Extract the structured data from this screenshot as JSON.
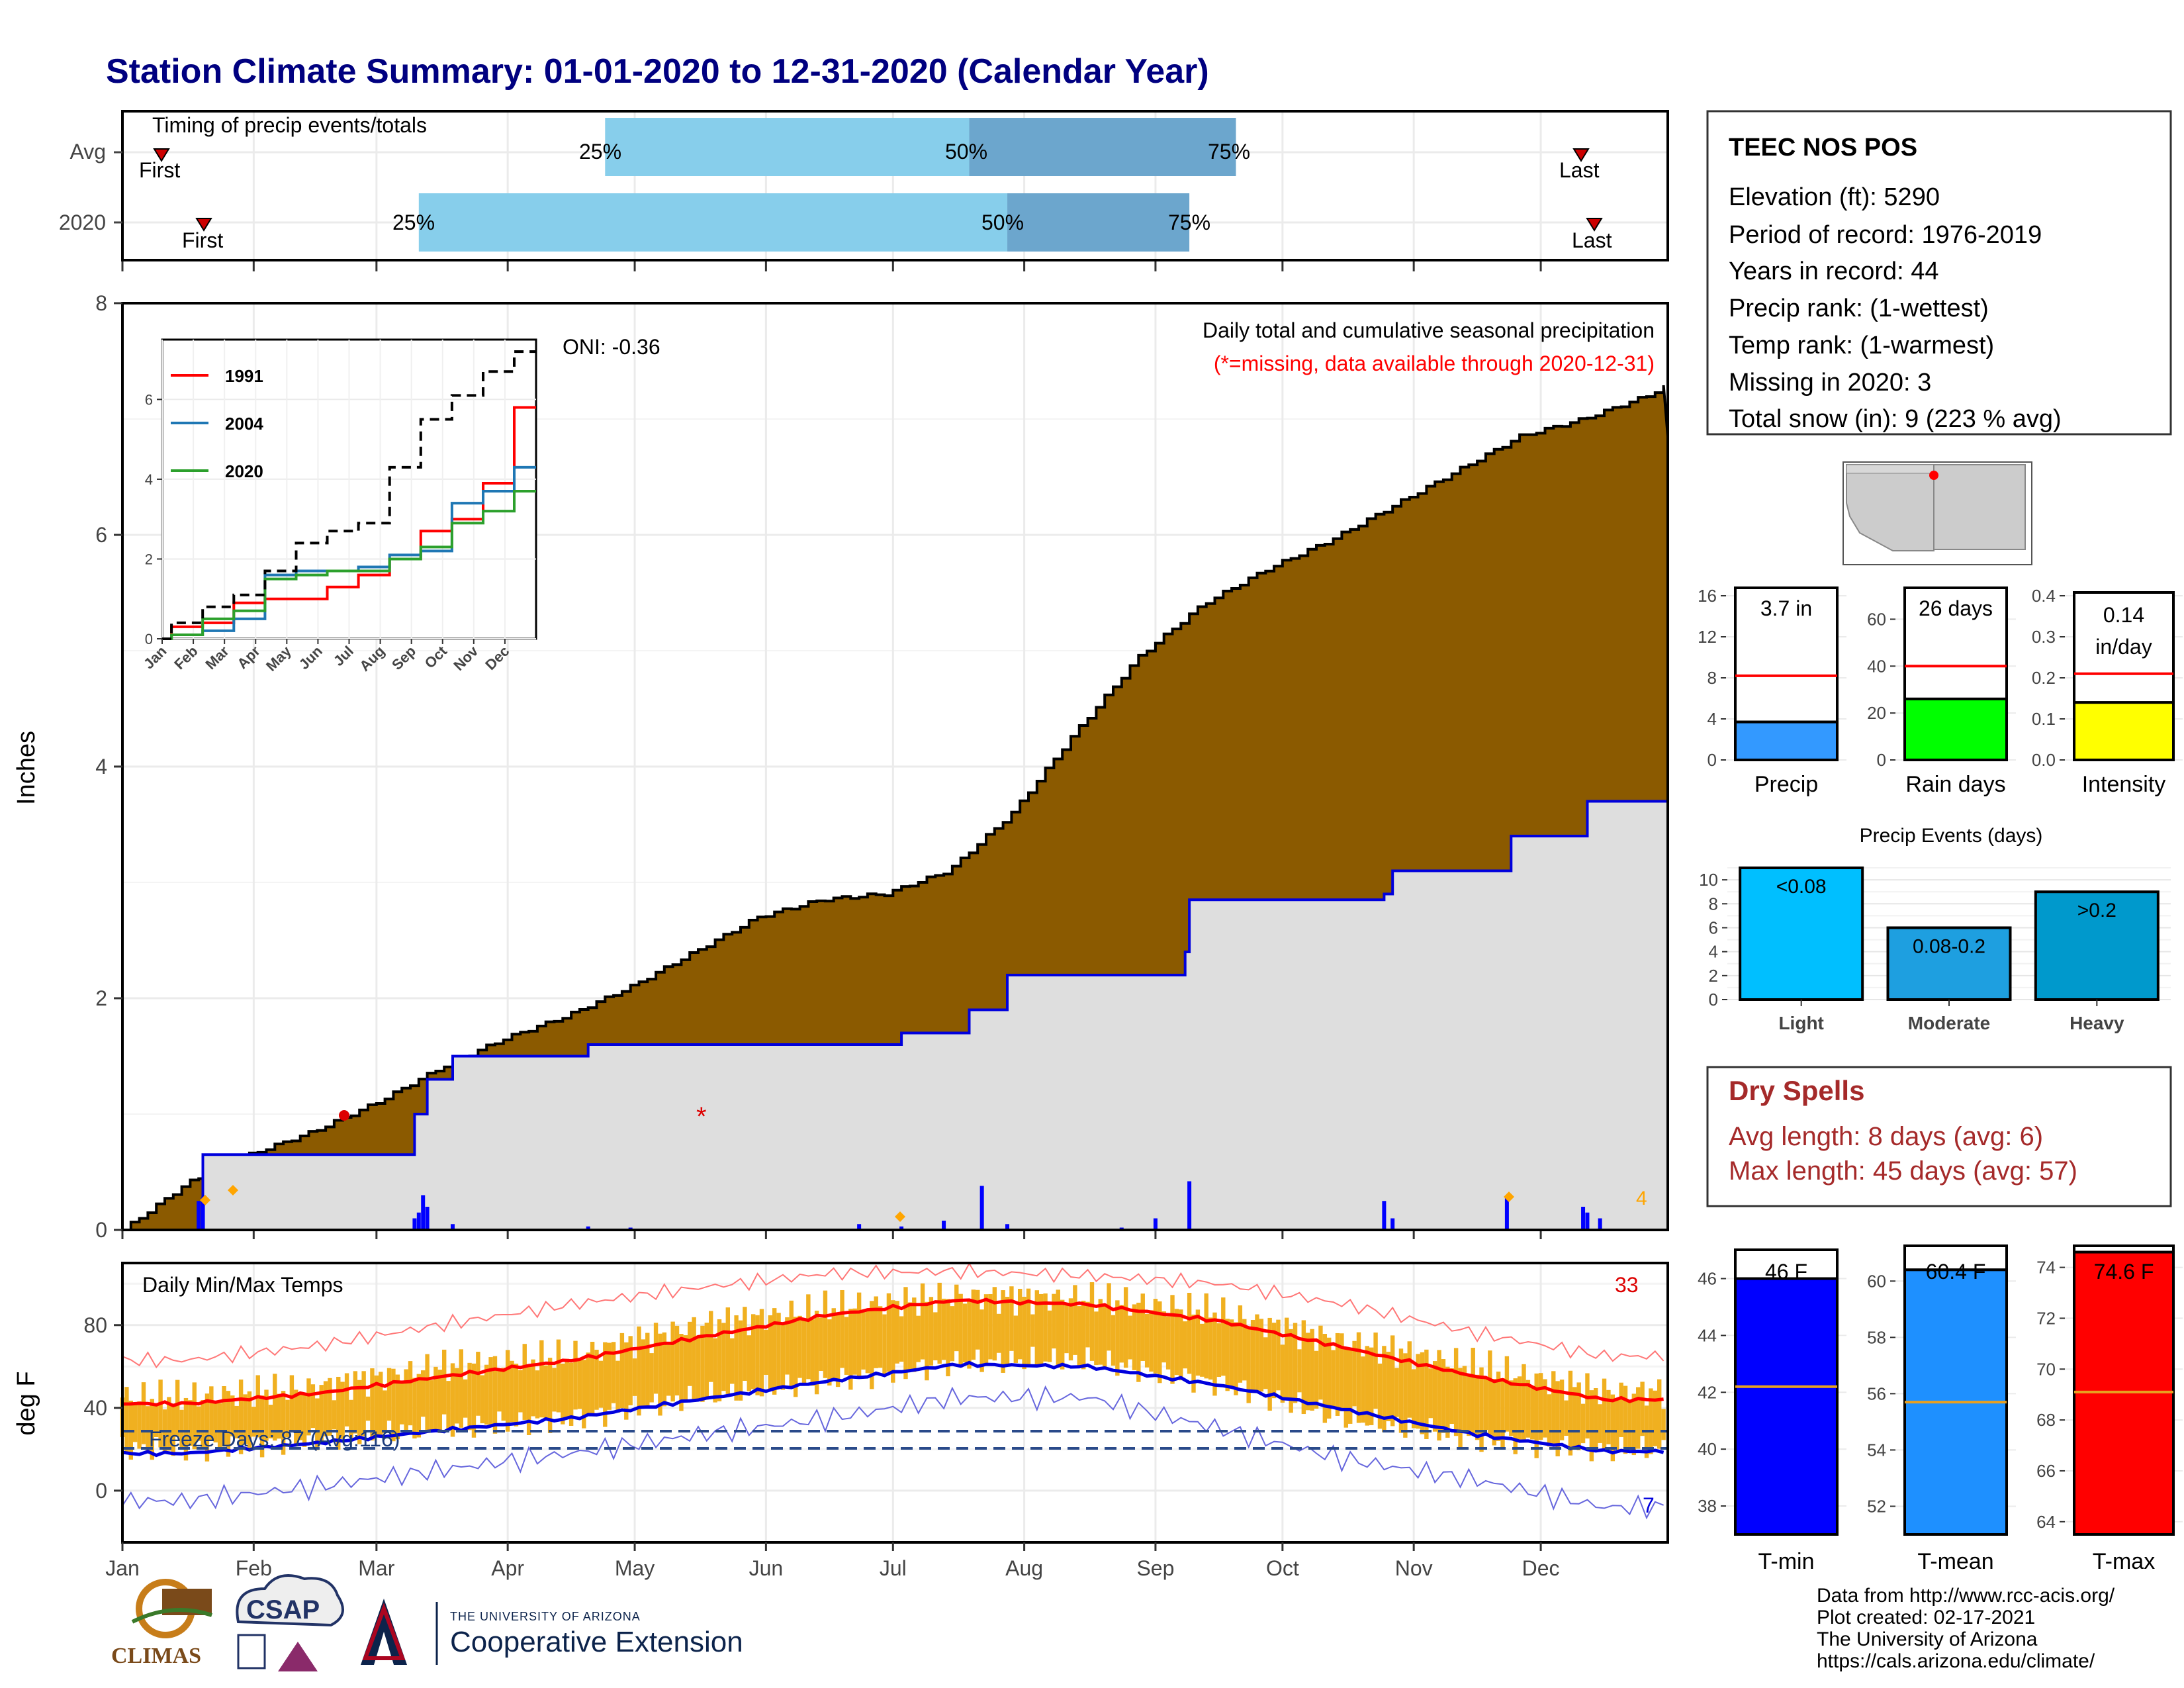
{
  "header": {
    "title": "Station Climate Summary: 01-01-2020 to 12-31-2020 (Calendar Year)"
  },
  "colors": {
    "title": "#000080",
    "cumulative_avg_fill": "#8B5A00",
    "cumulative_2020_fill": "#DEDEDE",
    "cumulative_2020_line": "#0000DD",
    "timing_light": "#87CEEB",
    "timing_dark": "#6CA6CD",
    "temp_range_bar": "#F0B020",
    "tmax_line": "#FF0000",
    "tmin_line": "#0000DD",
    "dry_spell_text": "#A52A2A",
    "precip_bar": "#3399FF",
    "raindays_bar": "#00FF00",
    "intensity_bar": "#FFFF00",
    "events_light": "#00BFFF",
    "events_moderate": "#1E9FE0",
    "events_heavy": "#0099CC",
    "tmin_bar": "#0000FF",
    "tmean_bar": "#1E90FF",
    "tmax_bar": "#FF0000"
  },
  "timing_panel": {
    "title": "Timing of precip events/totals",
    "rows": [
      {
        "label": "Avg",
        "first_label": "First",
        "last_label": "Last",
        "p25": "25%",
        "p50": "50%",
        "p75": "75%",
        "first_day": 12,
        "q25_day": 114,
        "q50_day": 200,
        "q75_day": 263,
        "last_day": 352
      },
      {
        "label": "2020",
        "first_label": "First",
        "last_label": "Last",
        "p25": "25%",
        "p50": "50%",
        "p75": "75%",
        "first_day": 22,
        "q25_day": 70,
        "q50_day": 209,
        "q75_day": 252,
        "last_day": 355
      }
    ]
  },
  "precip_panel": {
    "ylabel": "Inches",
    "y_ticks": [
      "0",
      "2",
      "4",
      "6",
      "8"
    ],
    "ylim": [
      0,
      8
    ],
    "caption": "Daily total and cumulative seasonal precipitation",
    "missing_note": "(*=missing, data available through 2020-12-31)",
    "oni_label": "ONI: -0.36",
    "corner_count": "4",
    "missing_marker": "*"
  },
  "inset": {
    "y_ticks": [
      "0",
      "2",
      "4",
      "6"
    ],
    "x_ticks": [
      "Jan",
      "Feb",
      "Mar",
      "Apr",
      "May",
      "Jun",
      "Jul",
      "Aug",
      "Sep",
      "Oct",
      "Nov",
      "Dec"
    ],
    "legend": [
      {
        "name": "1991",
        "color": "#FF0000"
      },
      {
        "name": "2004",
        "color": "#1F77B4"
      },
      {
        "name": "2020",
        "color": "#2CA02C"
      }
    ]
  },
  "temp_panel": {
    "title": "Daily Min/Max Temps",
    "ylabel": "deg F",
    "y_ticks": [
      "0",
      "40",
      "80"
    ],
    "ylim": [
      -25,
      110
    ],
    "freeze_label": "Freeze Days: 87 (Avg:116)",
    "hot_count": "33",
    "cold_count": "7",
    "months": [
      "Jan",
      "Feb",
      "Mar",
      "Apr",
      "May",
      "Jun",
      "Jul",
      "Aug",
      "Sep",
      "Oct",
      "Nov",
      "Dec"
    ]
  },
  "station": {
    "name": "TEEC NOS POS",
    "elevation": "Elevation (ft): 5290",
    "period": "Period of record: 1976-2019",
    "years": "Years in record: 44",
    "precip_rank": "Precip rank:  (1-wettest)",
    "temp_rank": "Temp rank:  (1-warmest)",
    "missing": "Missing in 2020: 3",
    "snow": "Total snow (in): 9 (223 % avg)"
  },
  "summary_bars": {
    "precip": {
      "label": "Precip",
      "value_text": "3.7 in",
      "y_ticks": [
        "0",
        "4",
        "8",
        "12",
        "16"
      ]
    },
    "raindays": {
      "label": "Rain days",
      "value_text": "26 days",
      "y_ticks": [
        "0",
        "20",
        "40",
        "60"
      ]
    },
    "intensity": {
      "label": "Intensity",
      "value_text_1": "0.14",
      "value_text_2": "in/day",
      "y_ticks": [
        "0.0",
        "0.1",
        "0.2",
        "0.3",
        "0.4"
      ]
    }
  },
  "events_panel": {
    "title": "Precip Events (days)",
    "y_ticks": [
      "0",
      "2",
      "4",
      "6",
      "8",
      "10"
    ],
    "categories": [
      "Light",
      "Moderate",
      "Heavy"
    ],
    "bar_labels": [
      "<0.08",
      "0.08-0.2",
      ">0.2"
    ]
  },
  "dry_spells": {
    "title": "Dry Spells",
    "avg": "Avg length: 8 days (avg: 6)",
    "max": "Max length: 45 days (avg: 57)"
  },
  "temp_bars": {
    "tmin": {
      "label": "T-min",
      "value_text": "46 F",
      "y_ticks": [
        "38",
        "40",
        "42",
        "44",
        "46"
      ]
    },
    "tmean": {
      "label": "T-mean",
      "value_text": "60.4 F",
      "y_ticks": [
        "52",
        "54",
        "56",
        "58",
        "60"
      ]
    },
    "tmax": {
      "label": "T-max",
      "value_text": "74.6 F",
      "y_ticks": [
        "64",
        "66",
        "68",
        "70",
        "72",
        "74"
      ]
    }
  },
  "footer": {
    "line1": "Data from http://www.rcc-acis.org/",
    "line2": "Plot created: 02-17-2021",
    "line3": "The University of Arizona",
    "line4": "https://cals.arizona.edu/climate/",
    "logo_climas": "CLIMAS",
    "logo_csap": "CSAP",
    "ua_small": "THE UNIVERSITY OF ARIZONA",
    "ua_big": "Cooperative Extension"
  },
  "chart_data": [
    {
      "type": "area",
      "title": "Daily total and cumulative seasonal precipitation",
      "ylabel": "Inches",
      "ylim": [
        0,
        8
      ],
      "x_unit": "day of year",
      "series": [
        {
          "name": "Avg",
          "x": [
            0,
            15,
            30,
            45,
            60,
            75,
            90,
            105,
            120,
            135,
            150,
            165,
            180,
            195,
            210,
            225,
            240,
            255,
            270,
            285,
            300,
            315,
            330,
            345,
            360,
            365
          ],
          "values": [
            0,
            0.4,
            0.65,
            0.85,
            1.1,
            1.4,
            1.65,
            1.85,
            2.1,
            2.4,
            2.7,
            2.85,
            2.9,
            3.1,
            3.6,
            4.3,
            4.95,
            5.4,
            5.7,
            5.95,
            6.25,
            6.55,
            6.85,
            7.0,
            7.2,
            7.3
          ]
        },
        {
          "name": "2020",
          "x": [
            0,
            18,
            19,
            68,
            69,
            72,
            78,
            110,
            184,
            200,
            209,
            251,
            252,
            298,
            300,
            328,
            345,
            346,
            355,
            365
          ],
          "values": [
            0,
            0,
            0.65,
            0.65,
            1.0,
            1.3,
            1.5,
            1.6,
            1.7,
            1.9,
            2.2,
            2.4,
            2.85,
            2.9,
            3.1,
            3.4,
            3.4,
            3.7,
            3.7,
            3.7
          ]
        },
        {
          "name": "Daily",
          "x": [
            18,
            19,
            69,
            70,
            71,
            72,
            78,
            110,
            120,
            174,
            184,
            194,
            203,
            209,
            236,
            244,
            252,
            298,
            300,
            327,
            345,
            346,
            349
          ],
          "values": [
            0.25,
            0.28,
            0.1,
            0.15,
            0.3,
            0.2,
            0.05,
            0.03,
            0.02,
            0.05,
            0.03,
            0.08,
            0.38,
            0.05,
            0.02,
            0.1,
            0.42,
            0.25,
            0.1,
            0.28,
            0.2,
            0.15,
            0.1
          ]
        }
      ]
    },
    {
      "type": "line",
      "title": "",
      "ylim": [
        0,
        7.5
      ],
      "categories": [
        "Jan",
        "Feb",
        "Mar",
        "Apr",
        "May",
        "Jun",
        "Jul",
        "Aug",
        "Sep",
        "Oct",
        "Nov",
        "Dec"
      ],
      "series": [
        {
          "name": "1991",
          "values": [
            0.3,
            0.4,
            0.9,
            1.0,
            1.0,
            1.3,
            1.6,
            2.0,
            2.7,
            3.0,
            3.9,
            5.8
          ]
        },
        {
          "name": "2004",
          "values": [
            0.1,
            0.2,
            0.5,
            1.6,
            1.7,
            1.7,
            1.8,
            2.1,
            2.2,
            3.4,
            3.7,
            4.3
          ]
        },
        {
          "name": "2020",
          "values": [
            0.1,
            0.5,
            0.7,
            1.5,
            1.6,
            1.7,
            1.7,
            2.0,
            2.3,
            2.9,
            3.2,
            3.7
          ]
        },
        {
          "name": "Avg",
          "values": [
            0.4,
            0.8,
            1.1,
            1.7,
            2.4,
            2.7,
            2.9,
            4.3,
            5.5,
            6.1,
            6.7,
            7.2
          ]
        }
      ]
    },
    {
      "type": "line",
      "title": "Daily Min/Max Temps",
      "ylabel": "deg F",
      "ylim": [
        -25,
        110
      ],
      "categories": [
        "Jan",
        "Feb",
        "Mar",
        "Apr",
        "May",
        "Jun",
        "Jul",
        "Aug",
        "Sep",
        "Oct",
        "Nov",
        "Dec"
      ],
      "series": [
        {
          "name": "Avg T-max",
          "values": [
            42,
            47,
            55,
            63,
            74,
            85,
            92,
            90,
            82,
            69,
            55,
            44
          ]
        },
        {
          "name": "Avg T-min",
          "values": [
            18,
            23,
            29,
            35,
            44,
            53,
            61,
            60,
            51,
            39,
            27,
            19
          ]
        },
        {
          "name": "Record high",
          "values": [
            63,
            70,
            80,
            90,
            98,
            105,
            106,
            104,
            100,
            90,
            76,
            65
          ]
        },
        {
          "name": "Record low",
          "values": [
            -5,
            2,
            10,
            18,
            27,
            35,
            45,
            45,
            30,
            15,
            5,
            -8
          ]
        },
        {
          "name": "2020 T-max",
          "values": [
            45,
            50,
            60,
            65,
            80,
            88,
            94,
            93,
            86,
            72,
            60,
            48
          ]
        },
        {
          "name": "2020 T-min",
          "values": [
            20,
            25,
            30,
            35,
            45,
            53,
            62,
            63,
            52,
            35,
            25,
            20
          ]
        }
      ]
    },
    {
      "type": "bar",
      "categories": [
        "Precip"
      ],
      "values": [
        3.7
      ],
      "ylim": [
        0,
        16
      ],
      "avg": 8.2
    },
    {
      "type": "bar",
      "categories": [
        "Rain days"
      ],
      "values": [
        26
      ],
      "ylim": [
        0,
        70
      ],
      "avg": 40
    },
    {
      "type": "bar",
      "categories": [
        "Intensity"
      ],
      "values": [
        0.14
      ],
      "ylim": [
        0,
        0.4
      ],
      "avg": 0.21
    },
    {
      "type": "bar",
      "title": "Precip Events (days)",
      "categories": [
        "Light",
        "Moderate",
        "Heavy"
      ],
      "values": [
        11,
        6,
        9
      ],
      "ylim": [
        0,
        11.5
      ]
    },
    {
      "type": "bar",
      "categories": [
        "T-min"
      ],
      "values": [
        46
      ],
      "ylim": [
        37,
        47.2
      ],
      "avg": 42.2
    },
    {
      "type": "bar",
      "categories": [
        "T-mean"
      ],
      "values": [
        60.4
      ],
      "ylim": [
        51,
        61.3
      ],
      "avg": 55.7
    },
    {
      "type": "bar",
      "categories": [
        "T-max"
      ],
      "values": [
        74.6
      ],
      "ylim": [
        63.5,
        74.9
      ],
      "avg": 69.1
    }
  ]
}
